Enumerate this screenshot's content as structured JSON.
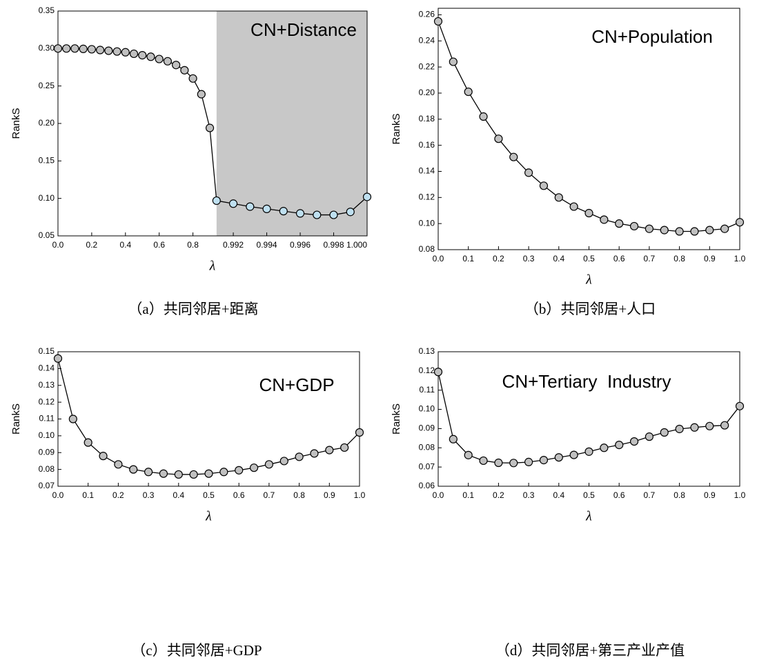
{
  "chart_data": [
    {
      "type": "line",
      "annotation": "CN+Distance",
      "caption": "（a）共同邻居+距离",
      "xlabel": "λ",
      "ylabel": "RankS",
      "x_segments": [
        [
          0,
          0.94
        ],
        [
          0.991,
          1.0
        ]
      ],
      "shade_color": "#c8c8c8",
      "ylim": [
        0.05,
        0.35
      ],
      "yticks": [
        0.05,
        {
          "value": 0.1,
          "label": "0.10"
        },
        0.15,
        {
          "value": 0.2,
          "label": "0.20"
        },
        0.25,
        {
          "value": 0.3,
          "label": "0.30"
        },
        0.35
      ],
      "xticks": [
        {
          "value": 0,
          "label": "0.0"
        },
        0.2,
        0.4,
        0.6,
        0.8,
        0.992,
        0.994,
        0.996,
        0.998,
        {
          "value": 1,
          "label": "1.000"
        }
      ],
      "series": [
        {
          "color": "#c0c0c0",
          "x": [
            0,
            0.05,
            0.1,
            0.15,
            0.2,
            0.25,
            0.3,
            0.35,
            0.4,
            0.45,
            0.5,
            0.55,
            0.6,
            0.65,
            0.7,
            0.75,
            0.8,
            0.85,
            0.9
          ],
          "values": [
            0.3,
            0.3,
            0.3,
            0.2995,
            0.299,
            0.298,
            0.297,
            0.296,
            0.295,
            0.293,
            0.291,
            0.289,
            0.286,
            0.283,
            0.278,
            0.271,
            0.26,
            0.239,
            0.194
          ]
        },
        {
          "color": "#bfe0f0",
          "x": [
            0.991,
            0.992,
            0.993,
            0.994,
            0.995,
            0.996,
            0.997,
            0.998,
            0.999,
            1.0
          ],
          "values": [
            0.097,
            0.093,
            0.089,
            0.086,
            0.083,
            0.08,
            0.078,
            0.078,
            0.082,
            0.102
          ]
        }
      ]
    },
    {
      "type": "line",
      "annotation": "CN+Population",
      "caption": "（b）共同邻居+人口",
      "xlabel": "λ",
      "ylabel": "RankS",
      "color": "#c0c0c0",
      "xlim": [
        0,
        1
      ],
      "ylim": [
        0.08,
        0.265
      ],
      "xticks": [
        {
          "value": 0,
          "label": "0.0"
        },
        0.1,
        0.2,
        0.3,
        0.4,
        0.5,
        0.6,
        0.7,
        0.8,
        0.9,
        {
          "value": 1,
          "label": "1.0"
        }
      ],
      "yticks": [
        0.08,
        {
          "value": 0.1,
          "label": "0.10"
        },
        0.12,
        0.14,
        0.16,
        0.18,
        {
          "value": 0.2,
          "label": "0.20"
        },
        0.22,
        0.24,
        0.26
      ],
      "x": [
        0,
        0.05,
        0.1,
        0.15,
        0.2,
        0.25,
        0.3,
        0.35,
        0.4,
        0.45,
        0.5,
        0.55,
        0.6,
        0.65,
        0.7,
        0.75,
        0.8,
        0.85,
        0.9,
        0.95,
        1.0
      ],
      "values": [
        0.255,
        0.224,
        0.201,
        0.182,
        0.165,
        0.151,
        0.139,
        0.129,
        0.12,
        0.113,
        0.108,
        0.103,
        0.1,
        0.098,
        0.096,
        0.095,
        0.094,
        0.094,
        0.095,
        0.096,
        0.101
      ]
    },
    {
      "type": "line",
      "annotation": "CN+GDP",
      "caption": "（c）共同邻居+GDP",
      "xlabel": "λ",
      "ylabel": "RankS",
      "color": "#c0c0c0",
      "xlim": [
        0,
        1
      ],
      "ylim": [
        0.07,
        0.15
      ],
      "xticks": [
        {
          "value": 0,
          "label": "0.0"
        },
        0.1,
        0.2,
        0.3,
        0.4,
        0.5,
        0.6,
        0.7,
        0.8,
        0.9,
        {
          "value": 1,
          "label": "1.0"
        }
      ],
      "yticks": [
        0.07,
        0.08,
        0.09,
        {
          "value": 0.1,
          "label": "0.10"
        },
        0.11,
        0.12,
        0.13,
        0.14,
        0.15
      ],
      "x": [
        0,
        0.05,
        0.1,
        0.15,
        0.2,
        0.25,
        0.3,
        0.35,
        0.4,
        0.45,
        0.5,
        0.55,
        0.6,
        0.65,
        0.7,
        0.75,
        0.8,
        0.85,
        0.9,
        0.95,
        1.0
      ],
      "values": [
        0.146,
        0.11,
        0.096,
        0.088,
        0.083,
        0.08,
        0.0785,
        0.0775,
        0.077,
        0.077,
        0.0775,
        0.0785,
        0.0795,
        0.081,
        0.083,
        0.085,
        0.0875,
        0.0895,
        0.0915,
        0.093,
        0.102
      ]
    },
    {
      "type": "line",
      "annotation": "CN+Tertiary  Industry",
      "caption": "（d）共同邻居+第三产业产值",
      "xlabel": "λ",
      "ylabel": "RankS",
      "color": "#c0c0c0",
      "xlim": [
        0,
        1
      ],
      "ylim": [
        0.06,
        0.13
      ],
      "xticks": [
        {
          "value": 0,
          "label": "0.0"
        },
        0.1,
        0.2,
        0.3,
        0.4,
        0.5,
        0.6,
        0.7,
        0.8,
        0.9,
        {
          "value": 1,
          "label": "1.0"
        }
      ],
      "yticks": [
        0.06,
        0.07,
        0.08,
        0.09,
        {
          "value": 0.1,
          "label": "0.10"
        },
        0.11,
        0.12,
        0.13
      ],
      "x": [
        0,
        0.05,
        0.1,
        0.15,
        0.2,
        0.25,
        0.3,
        0.35,
        0.4,
        0.45,
        0.5,
        0.55,
        0.6,
        0.65,
        0.7,
        0.75,
        0.8,
        0.85,
        0.9,
        0.95,
        1.0
      ],
      "values": [
        0.1195,
        0.0845,
        0.0762,
        0.0733,
        0.0722,
        0.0721,
        0.0726,
        0.0736,
        0.075,
        0.0763,
        0.078,
        0.08,
        0.0815,
        0.0833,
        0.0858,
        0.088,
        0.0898,
        0.0906,
        0.0913,
        0.0917,
        0.1017
      ]
    }
  ]
}
